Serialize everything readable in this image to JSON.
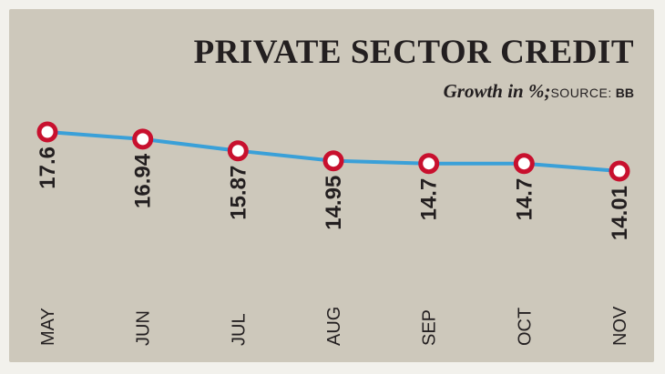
{
  "title": "PRIVATE SECTOR CREDIT",
  "subtitle": "Growth in %;",
  "source_label": "SOURCE:",
  "source_value": "BB",
  "colors": {
    "background": "#cdc8bb",
    "line": "#3aa0d8",
    "marker_ring": "#c8102e",
    "marker_fill": "#ffffff",
    "text": "#231f20"
  },
  "chart_data": {
    "type": "line",
    "categories": [
      "MAY",
      "JUN",
      "JUL",
      "AUG",
      "SEP",
      "OCT",
      "NOV"
    ],
    "values": [
      17.6,
      16.94,
      15.87,
      14.95,
      14.7,
      14.7,
      14.01
    ],
    "value_labels": [
      "17.6",
      "16.94",
      "15.87",
      "14.95",
      "14.7",
      "14.7",
      "14.01"
    ],
    "xlabel": "",
    "ylabel": "",
    "grid": false,
    "legend": "none",
    "data_labels": "below-rotated"
  }
}
